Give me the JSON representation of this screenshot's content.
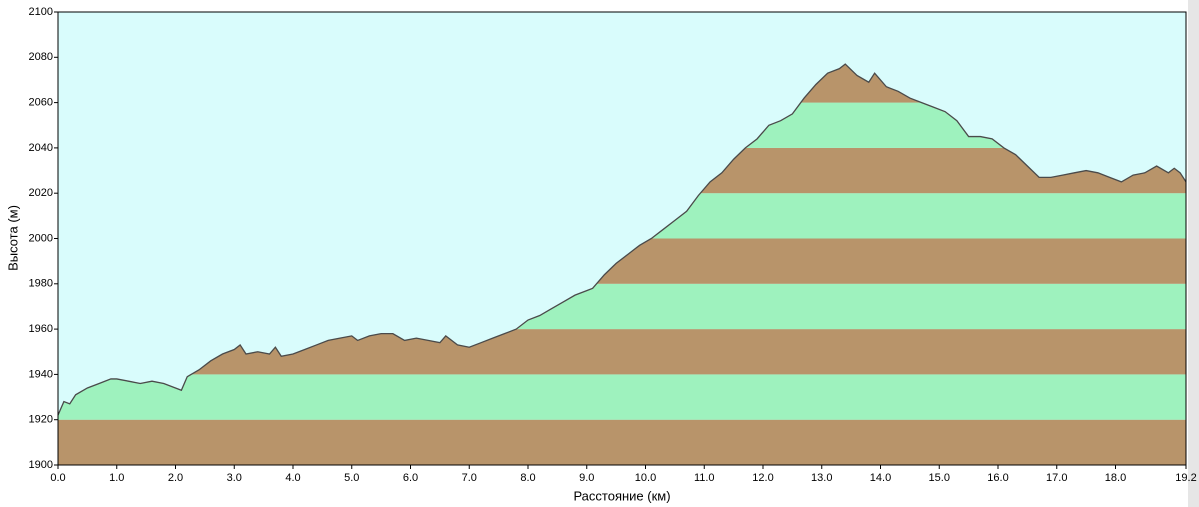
{
  "chart_data": {
    "type": "area",
    "xlabel": "Расстояние  (км)",
    "ylabel": "Высота (м)",
    "x": [
      0.0,
      0.1,
      0.2,
      0.3,
      0.5,
      0.7,
      0.9,
      1.0,
      1.2,
      1.4,
      1.6,
      1.8,
      2.0,
      2.1,
      2.2,
      2.4,
      2.6,
      2.8,
      3.0,
      3.1,
      3.2,
      3.4,
      3.6,
      3.7,
      3.8,
      4.0,
      4.2,
      4.4,
      4.6,
      4.8,
      5.0,
      5.1,
      5.3,
      5.5,
      5.7,
      5.9,
      6.1,
      6.3,
      6.5,
      6.6,
      6.8,
      7.0,
      7.2,
      7.4,
      7.6,
      7.8,
      8.0,
      8.2,
      8.4,
      8.6,
      8.8,
      9.0,
      9.1,
      9.3,
      9.5,
      9.7,
      9.9,
      10.1,
      10.3,
      10.5,
      10.7,
      10.9,
      11.1,
      11.3,
      11.5,
      11.7,
      11.9,
      12.1,
      12.3,
      12.5,
      12.7,
      12.9,
      13.1,
      13.3,
      13.4,
      13.6,
      13.8,
      13.9,
      14.1,
      14.3,
      14.5,
      14.7,
      14.9,
      15.1,
      15.3,
      15.5,
      15.7,
      15.9,
      16.1,
      16.3,
      16.5,
      16.7,
      16.9,
      17.1,
      17.3,
      17.5,
      17.7,
      17.9,
      18.1,
      18.3,
      18.5,
      18.7,
      18.9,
      19.0,
      19.1,
      19.2
    ],
    "values": [
      1922,
      1928,
      1927,
      1931,
      1934,
      1936,
      1938,
      1938,
      1937,
      1936,
      1937,
      1936,
      1934,
      1933,
      1939,
      1942,
      1946,
      1949,
      1951,
      1953,
      1949,
      1950,
      1949,
      1952,
      1948,
      1949,
      1951,
      1953,
      1955,
      1956,
      1957,
      1955,
      1957,
      1958,
      1958,
      1955,
      1956,
      1955,
      1954,
      1957,
      1953,
      1952,
      1954,
      1956,
      1958,
      1960,
      1964,
      1966,
      1969,
      1972,
      1975,
      1977,
      1978,
      1984,
      1989,
      1993,
      1997,
      2000,
      2004,
      2008,
      2012,
      2019,
      2025,
      2029,
      2035,
      2040,
      2044,
      2050,
      2052,
      2055,
      2062,
      2068,
      2073,
      2075,
      2077,
      2072,
      2069,
      2073,
      2067,
      2065,
      2062,
      2060,
      2058,
      2056,
      2052,
      2045,
      2045,
      2044,
      2040,
      2037,
      2032,
      2027,
      2027,
      2028,
      2029,
      2030,
      2029,
      2027,
      2025,
      2028,
      2029,
      2032,
      2029,
      2031,
      2029,
      2025
    ],
    "xlim": [
      0,
      19.2
    ],
    "ylim": [
      1900,
      2100
    ],
    "xticks": [
      {
        "value": 0,
        "label": "0.0"
      },
      {
        "value": 1,
        "label": "1.0"
      },
      {
        "value": 2,
        "label": "2.0"
      },
      {
        "value": 3,
        "label": "3.0"
      },
      {
        "value": 4,
        "label": "4.0"
      },
      {
        "value": 5,
        "label": "5.0"
      },
      {
        "value": 6,
        "label": "6.0"
      },
      {
        "value": 7,
        "label": "7.0"
      },
      {
        "value": 8,
        "label": "8.0"
      },
      {
        "value": 9,
        "label": "9.0"
      },
      {
        "value": 10,
        "label": "10.0"
      },
      {
        "value": 11,
        "label": "11.0"
      },
      {
        "value": 12,
        "label": "12.0"
      },
      {
        "value": 13,
        "label": "13.0"
      },
      {
        "value": 14,
        "label": "14.0"
      },
      {
        "value": 15,
        "label": "15.0"
      },
      {
        "value": 16,
        "label": "16.0"
      },
      {
        "value": 17,
        "label": "17.0"
      },
      {
        "value": 18,
        "label": "18.0"
      },
      {
        "value": 19.2,
        "label": "19.2"
      }
    ],
    "yticks": [
      1900,
      1920,
      1940,
      1960,
      1980,
      2000,
      2020,
      2040,
      2060,
      2080,
      2100
    ],
    "background_color": "#d9fcfc",
    "band_colors": [
      "#b8946a",
      "#9ef2be"
    ],
    "line_color": "#4a4a4a"
  }
}
